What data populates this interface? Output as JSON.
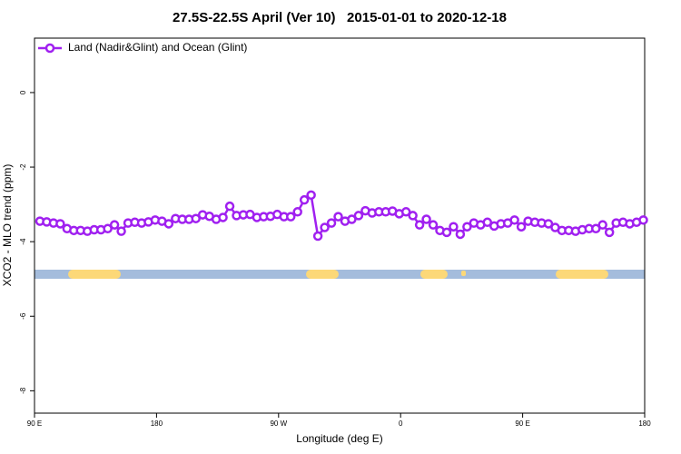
{
  "chart_data": {
    "type": "line",
    "title": "27.5S-22.5S April (Ver 10)   2015-01-01 to 2020-12-18",
    "xlabel": "Longitude (deg E)",
    "ylabel": "XCO2 - MLO trend (ppm)",
    "legend": "top-left",
    "x": [
      94,
      99,
      104,
      109,
      114,
      119,
      124,
      129,
      134,
      139,
      144,
      149,
      154,
      159,
      164,
      169,
      174,
      179,
      184,
      189,
      194,
      199,
      204,
      209,
      214,
      219,
      224,
      229,
      234,
      239,
      244,
      249,
      254,
      259,
      264,
      269,
      274,
      279,
      284,
      289,
      294,
      299,
      304,
      309,
      314,
      319,
      324,
      329,
      334,
      339,
      344,
      349,
      354,
      359,
      364,
      369,
      374,
      379,
      384,
      389,
      394,
      399,
      404,
      409,
      414,
      419,
      424,
      429,
      434,
      439,
      444,
      449,
      454,
      459,
      464,
      469,
      474,
      479,
      484,
      489,
      494,
      499,
      504,
      509,
      514,
      519,
      524,
      529,
      534,
      539
    ],
    "series": [
      {
        "name": "Land (Nadir&Glint) and Ocean (Glint)",
        "color": "#a020f0",
        "values": [
          -3.45,
          -3.47,
          -3.5,
          -3.52,
          -3.65,
          -3.7,
          -3.7,
          -3.72,
          -3.68,
          -3.68,
          -3.65,
          -3.55,
          -3.72,
          -3.5,
          -3.48,
          -3.5,
          -3.47,
          -3.42,
          -3.45,
          -3.52,
          -3.38,
          -3.4,
          -3.4,
          -3.38,
          -3.28,
          -3.32,
          -3.4,
          -3.35,
          -3.05,
          -3.3,
          -3.28,
          -3.27,
          -3.35,
          -3.33,
          -3.32,
          -3.27,
          -3.33,
          -3.33,
          -3.2,
          -2.88,
          -2.75,
          -3.85,
          -3.62,
          -3.5,
          -3.33,
          -3.45,
          -3.4,
          -3.3,
          -3.17,
          -3.23,
          -3.2,
          -3.2,
          -3.18,
          -3.25,
          -3.2,
          -3.3,
          -3.55,
          -3.4,
          -3.55,
          -3.7,
          -3.75,
          -3.6,
          -3.8,
          -3.6,
          -3.5,
          -3.55,
          -3.48,
          -3.58,
          -3.52,
          -3.5,
          -3.42,
          -3.6,
          -3.45,
          -3.48,
          -3.5,
          -3.52,
          -3.62,
          -3.7,
          -3.7,
          -3.72,
          -3.68,
          -3.65,
          -3.65,
          -3.55,
          -3.75,
          -3.5,
          -3.48,
          -3.52,
          -3.48,
          -3.42
        ]
      }
    ],
    "xlim": [
      90,
      540
    ],
    "xticks": [
      {
        "value": 90,
        "label": "90 E"
      },
      180,
      {
        "value": 270,
        "label": "90 W"
      },
      {
        "value": 360,
        "label": "0"
      },
      {
        "value": 450,
        "label": "90 E"
      },
      {
        "value": 540,
        "label": "180"
      }
    ],
    "ylim": [
      -8.6,
      1.46
    ],
    "yticks": [
      0,
      -2,
      -4,
      -6,
      -8
    ]
  }
}
